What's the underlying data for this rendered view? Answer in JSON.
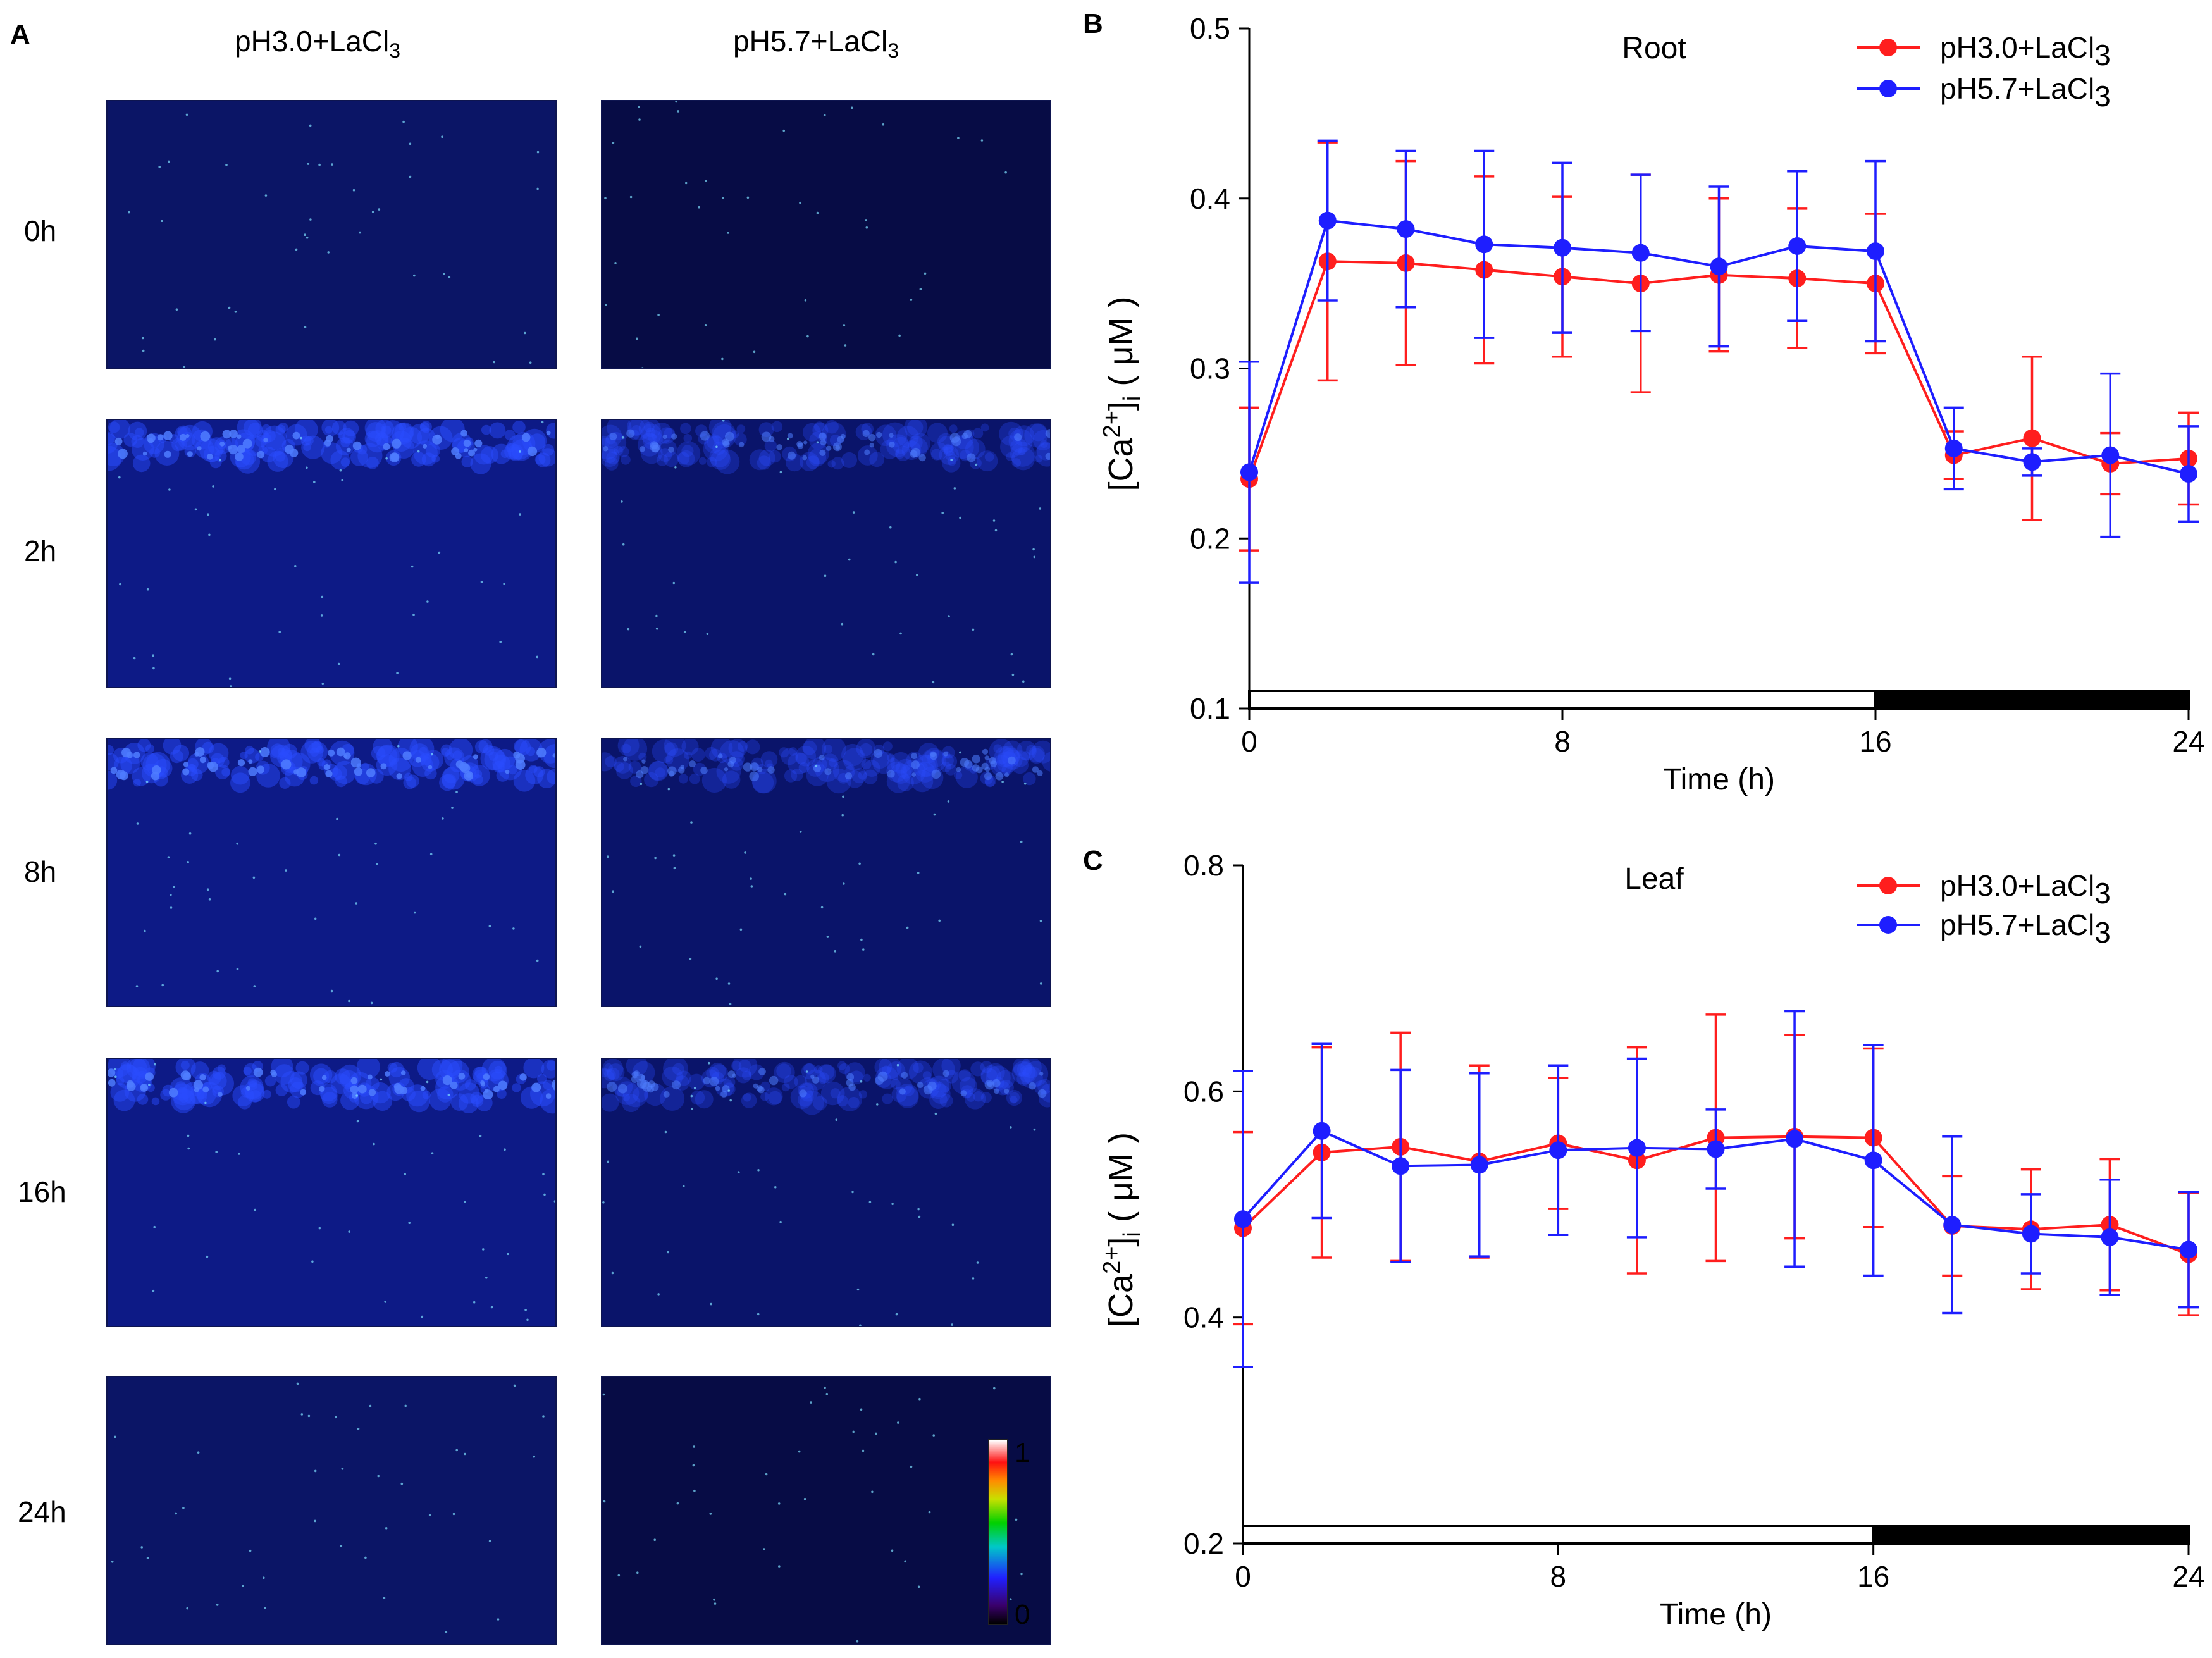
{
  "panel_a": {
    "letter": "A",
    "columns": [
      {
        "label": "pH3.0+LaCl",
        "sub": "3"
      },
      {
        "label": "pH5.7+LaCl",
        "sub": "3"
      }
    ],
    "rows": [
      "0h",
      "2h",
      "8h",
      "16h",
      "24h"
    ],
    "colorbar": {
      "max": "1",
      "min": "0"
    }
  },
  "colors": {
    "red": "#ff1e1e",
    "blue": "#1e1eff",
    "micro_bg": "#0a1a7a",
    "micro_dark": "#05093a"
  },
  "chart_data": [
    {
      "panel": "B",
      "type": "line",
      "title": "Root",
      "xlabel": "Time (h)",
      "ylabel_main": "[Ca",
      "ylabel_sup": "2+",
      "ylabel_end": "]",
      "ylabel_sub": "i",
      "ylabel_unit": " ( μM )",
      "xlim": [
        0,
        24
      ],
      "ylim": [
        0.1,
        0.5
      ],
      "xticks": [
        0,
        8,
        16,
        24
      ],
      "yticks": [
        0.1,
        0.2,
        0.3,
        0.4,
        0.5
      ],
      "light_period": [
        0,
        16
      ],
      "dark_period": [
        16,
        24
      ],
      "series": [
        {
          "name": "pH3.0+LaCl",
          "sub": "3",
          "color": "#ff1e1e",
          "x": [
            0,
            2,
            4,
            6,
            8,
            10,
            12,
            14,
            16,
            18,
            20,
            22,
            24
          ],
          "y": [
            0.235,
            0.363,
            0.362,
            0.358,
            0.354,
            0.35,
            0.355,
            0.353,
            0.35,
            0.249,
            0.259,
            0.244,
            0.247
          ],
          "err": [
            0.042,
            0.07,
            0.06,
            0.055,
            0.047,
            0.064,
            0.045,
            0.041,
            0.041,
            0.014,
            0.048,
            0.018,
            0.027
          ]
        },
        {
          "name": "pH5.7+LaCl",
          "sub": "3",
          "color": "#1e1eff",
          "x": [
            0,
            2,
            4,
            6,
            8,
            10,
            12,
            14,
            16,
            18,
            20,
            22,
            24
          ],
          "y": [
            0.239,
            0.387,
            0.382,
            0.373,
            0.371,
            0.368,
            0.36,
            0.372,
            0.369,
            0.253,
            0.245,
            0.249,
            0.238
          ],
          "err": [
            0.065,
            0.047,
            0.046,
            0.055,
            0.05,
            0.046,
            0.047,
            0.044,
            0.053,
            0.024,
            0.008,
            0.048,
            0.028
          ]
        }
      ]
    },
    {
      "panel": "C",
      "type": "line",
      "title": "Leaf",
      "xlabel": "Time (h)",
      "ylabel_main": "[Ca",
      "ylabel_sup": "2+",
      "ylabel_end": "]",
      "ylabel_sub": "i",
      "ylabel_unit": " ( μM )",
      "xlim": [
        0,
        24
      ],
      "ylim": [
        0.2,
        0.8
      ],
      "xticks": [
        0,
        8,
        16,
        24
      ],
      "yticks": [
        0.2,
        0.4,
        0.6,
        0.8
      ],
      "light_period": [
        0,
        16
      ],
      "dark_period": [
        16,
        24
      ],
      "series": [
        {
          "name": "pH3.0+LaCl",
          "sub": "3",
          "color": "#ff1e1e",
          "x": [
            0,
            2,
            4,
            6,
            8,
            10,
            12,
            14,
            16,
            18,
            20,
            22,
            24
          ],
          "y": [
            0.479,
            0.546,
            0.551,
            0.538,
            0.554,
            0.539,
            0.559,
            0.56,
            0.559,
            0.481,
            0.478,
            0.482,
            0.456
          ],
          "err": [
            0.085,
            0.093,
            0.101,
            0.085,
            0.058,
            0.1,
            0.109,
            0.09,
            0.079,
            0.044,
            0.053,
            0.058,
            0.054
          ]
        },
        {
          "name": "pH5.7+LaCl",
          "sub": "3",
          "color": "#1e1eff",
          "x": [
            0,
            2,
            4,
            6,
            8,
            10,
            12,
            14,
            16,
            18,
            20,
            22,
            24
          ],
          "y": [
            0.487,
            0.565,
            0.534,
            0.535,
            0.548,
            0.55,
            0.549,
            0.558,
            0.539,
            0.482,
            0.474,
            0.471,
            0.46
          ],
          "err": [
            0.131,
            0.077,
            0.085,
            0.081,
            0.075,
            0.079,
            0.035,
            0.113,
            0.102,
            0.078,
            0.035,
            0.051,
            0.051
          ]
        }
      ]
    }
  ]
}
